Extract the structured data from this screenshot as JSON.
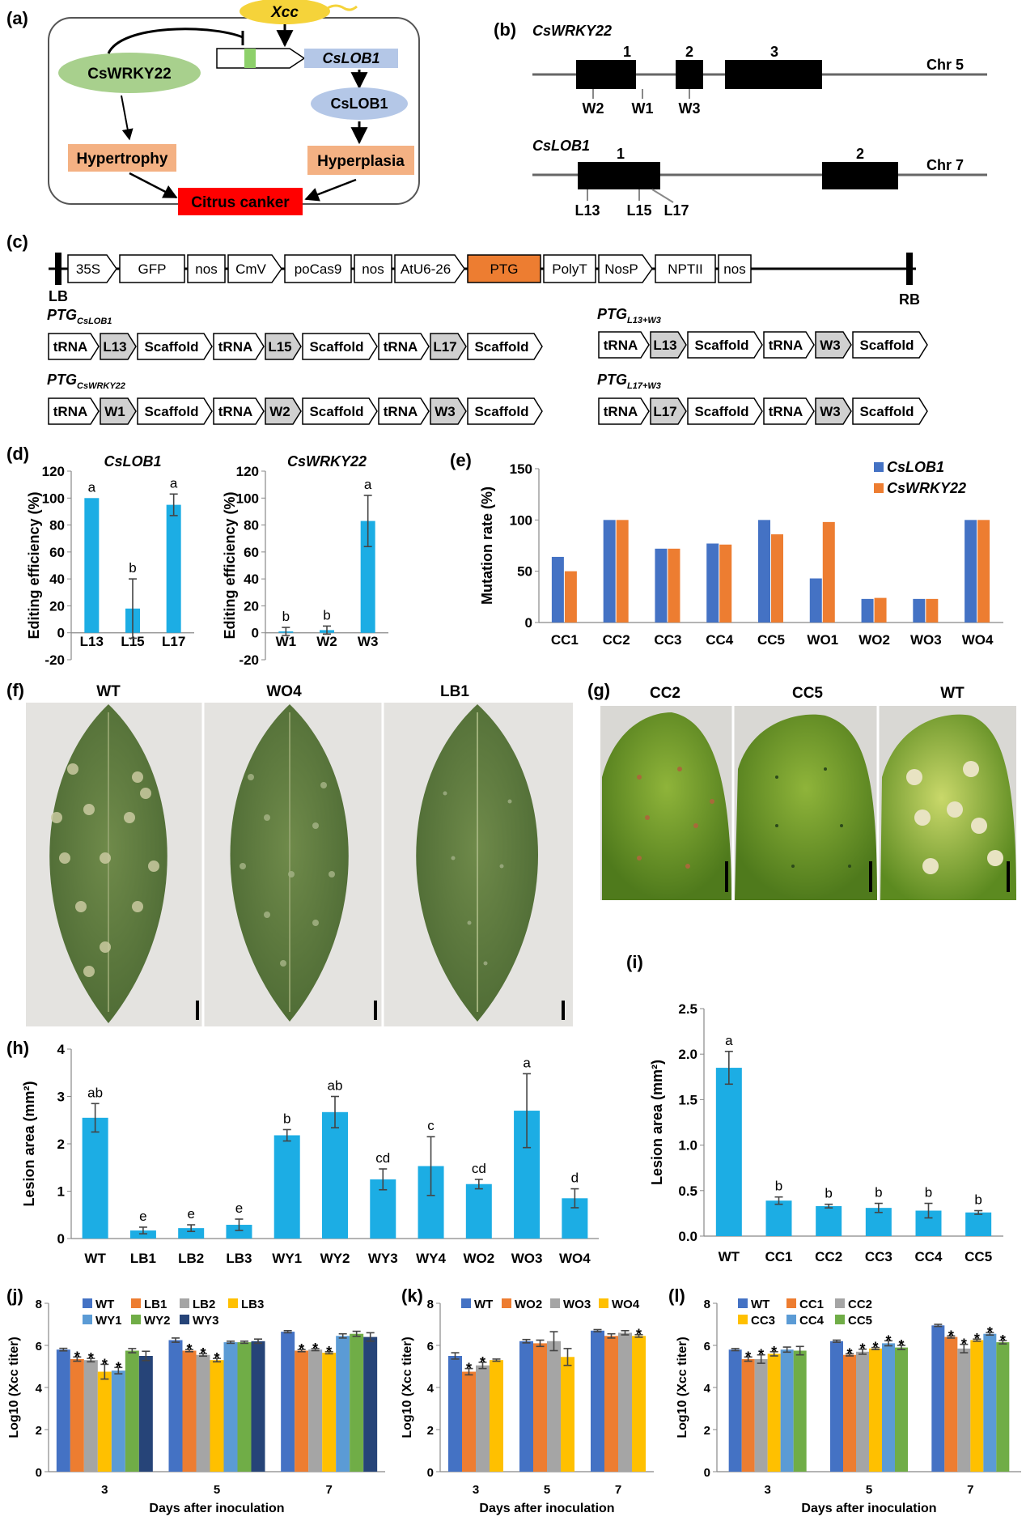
{
  "panels": {
    "a": {
      "label": "(a)",
      "xcc": "Xcc",
      "wrky": "CsWRKY22",
      "lob_gene": "CsLOB1",
      "lob_protein": "CsLOB1",
      "hypertrophy": "Hypertrophy",
      "hyperplasia": "Hyperplasia",
      "canker": "Citrus canker",
      "colors": {
        "xcc": "#f5d33a",
        "wrky": "#a8d08d",
        "lob_gene": "#b4c7e7",
        "lob_protein": "#b4c7e7",
        "box": "#f4b183",
        "canker": "#ff0000"
      }
    },
    "b": {
      "label": "(b)",
      "gene1": {
        "name": "CsWRKY22",
        "chr": "Chr 5",
        "exons": [
          "1",
          "2",
          "3"
        ],
        "sites": [
          "W2",
          "W1",
          "W3"
        ]
      },
      "gene2": {
        "name": "CsLOB1",
        "chr": "Chr 7",
        "exons": [
          "1",
          "2"
        ],
        "sites": [
          "L13",
          "L15",
          "L17"
        ]
      }
    },
    "c": {
      "label": "(c)",
      "vector": [
        "35S",
        "GFP",
        "nos",
        "CmV",
        "poCas9",
        "nos",
        "AtU6-26",
        "PTG",
        "PolyT",
        "NosP",
        "NPTII",
        "nos"
      ],
      "lb": "LB",
      "rb": "RB",
      "ptg_color": "#ed7d31",
      "ptg_sets": [
        {
          "name": "PTG",
          "sub": "CsLOB1",
          "units": [
            "tRNA",
            "L13",
            "Scaffold",
            "tRNA",
            "L15",
            "Scaffold",
            "tRNA",
            "L17",
            "Scaffold"
          ]
        },
        {
          "name": "PTG",
          "sub": "CsWRKY22",
          "units": [
            "tRNA",
            "W1",
            "Scaffold",
            "tRNA",
            "W2",
            "Scaffold",
            "tRNA",
            "W3",
            "Scaffold"
          ]
        },
        {
          "name": "PTG",
          "sub": "L13+W3",
          "units": [
            "tRNA",
            "L13",
            "Scaffold",
            "tRNA",
            "W3",
            "Scaffold"
          ]
        },
        {
          "name": "PTG",
          "sub": "L17+W3",
          "units": [
            "tRNA",
            "L17",
            "Scaffold",
            "tRNA",
            "W3",
            "Scaffold"
          ]
        }
      ]
    },
    "d": {
      "label": "(d)"
    },
    "e": {
      "label": "(e)"
    },
    "f": {
      "label": "(f)",
      "titles": [
        "WT",
        "WO4",
        "LB1"
      ]
    },
    "g": {
      "label": "(g)",
      "titles": [
        "CC2",
        "CC5",
        "WT"
      ]
    },
    "h": {
      "label": "(h)"
    },
    "i": {
      "label": "(i)"
    },
    "j": {
      "label": "(j)"
    },
    "k": {
      "label": "(k)"
    },
    "l": {
      "label": "(l)"
    }
  },
  "chart_data": [
    {
      "id": "d1",
      "type": "bar",
      "title": "CsLOB1",
      "ylabel": "Editing efficiency (%)",
      "ylim": [
        -20,
        120
      ],
      "yticks": [
        -20,
        0,
        20,
        40,
        60,
        80,
        100,
        120
      ],
      "categories": [
        "L13",
        "L15",
        "L17"
      ],
      "values": [
        100,
        18,
        95
      ],
      "errors": [
        0,
        22,
        8
      ],
      "letters": [
        "a",
        "b",
        "a"
      ],
      "color": "#1cade4"
    },
    {
      "id": "d2",
      "type": "bar",
      "title": "CsWRKY22",
      "ylabel": "Editing efficiency (%)",
      "ylim": [
        -20,
        120
      ],
      "yticks": [
        -20,
        0,
        20,
        40,
        60,
        80,
        100,
        120
      ],
      "categories": [
        "W1",
        "W2",
        "W3"
      ],
      "values": [
        1,
        2,
        83
      ],
      "errors": [
        3,
        3,
        19
      ],
      "letters": [
        "b",
        "b",
        "a"
      ],
      "color": "#1cade4"
    },
    {
      "id": "e",
      "type": "bar",
      "ylabel": "Mutation rate (%)",
      "ylim": [
        0,
        150
      ],
      "yticks": [
        0,
        50,
        100,
        150
      ],
      "categories": [
        "CC1",
        "CC2",
        "CC3",
        "CC4",
        "CC5",
        "WO1",
        "WO2",
        "WO3",
        "WO4"
      ],
      "series": [
        {
          "name": "CsLOB1",
          "color": "#4472c4",
          "values": [
            64,
            100,
            72,
            77,
            100,
            43,
            23,
            23,
            100
          ]
        },
        {
          "name": "CsWRKY22",
          "color": "#ed7d31",
          "values": [
            50,
            100,
            72,
            76,
            86,
            98,
            24,
            23,
            100
          ]
        }
      ]
    },
    {
      "id": "h",
      "type": "bar",
      "ylabel": "Lesion area (mm²)",
      "ylim": [
        0,
        4
      ],
      "yticks": [
        0,
        1,
        2,
        3,
        4
      ],
      "categories": [
        "WT",
        "LB1",
        "LB2",
        "LB3",
        "WY1",
        "WY2",
        "WY3",
        "WY4",
        "WO2",
        "WO3",
        "WO4"
      ],
      "values": [
        2.55,
        0.17,
        0.22,
        0.29,
        2.18,
        2.67,
        1.25,
        1.53,
        1.15,
        2.7,
        0.85
      ],
      "errors": [
        0.3,
        0.07,
        0.07,
        0.12,
        0.12,
        0.33,
        0.22,
        0.62,
        0.1,
        0.78,
        0.2
      ],
      "letters": [
        "ab",
        "e",
        "e",
        "e",
        "b",
        "ab",
        "cd",
        "c",
        "cd",
        "a",
        "d"
      ],
      "color": "#1cade4"
    },
    {
      "id": "i",
      "type": "bar",
      "ylabel": "Lesion area (mm²)",
      "ylim": [
        0,
        2.5
      ],
      "yticks": [
        0.0,
        0.5,
        1.0,
        1.5,
        2.0,
        2.5
      ],
      "categories": [
        "WT",
        "CC1",
        "CC2",
        "CC3",
        "CC4",
        "CC5"
      ],
      "values": [
        1.85,
        0.39,
        0.33,
        0.31,
        0.28,
        0.26
      ],
      "errors": [
        0.18,
        0.04,
        0.02,
        0.05,
        0.08,
        0.02
      ],
      "letters": [
        "a",
        "b",
        "b",
        "b",
        "b",
        "b"
      ],
      "color": "#1cade4"
    },
    {
      "id": "j",
      "type": "bar",
      "ylabel": "Log10 (Xcc titer)",
      "xlabel": "Days after inoculation",
      "ylim": [
        0,
        8
      ],
      "yticks": [
        0,
        2,
        4,
        6,
        8
      ],
      "categories": [
        "3",
        "5",
        "7"
      ],
      "series": [
        {
          "name": "WT",
          "color": "#4472c4",
          "values": [
            5.8,
            6.25,
            6.65
          ],
          "errors": [
            0.06,
            0.1,
            0.05
          ],
          "star": [
            false,
            false,
            false
          ]
        },
        {
          "name": "LB1",
          "color": "#ed7d31",
          "values": [
            5.35,
            5.75,
            5.75
          ],
          "errors": [
            0.1,
            0.05,
            0.05
          ],
          "star": [
            true,
            true,
            true
          ]
        },
        {
          "name": "LB2",
          "color": "#a5a5a5",
          "values": [
            5.3,
            5.55,
            5.8
          ],
          "errors": [
            0.08,
            0.06,
            0.05
          ],
          "star": [
            true,
            true,
            true
          ]
        },
        {
          "name": "LB3",
          "color": "#ffc000",
          "values": [
            4.75,
            5.3,
            5.65
          ],
          "errors": [
            0.35,
            0.08,
            0.05
          ],
          "star": [
            true,
            true,
            true
          ]
        },
        {
          "name": "WY1",
          "color": "#5b9bd5",
          "values": [
            4.8,
            6.15,
            6.45
          ],
          "errors": [
            0.15,
            0.05,
            0.1
          ],
          "star": [
            true,
            false,
            false
          ]
        },
        {
          "name": "WY2",
          "color": "#70ad47",
          "values": [
            5.75,
            6.15,
            6.55
          ],
          "errors": [
            0.1,
            0.05,
            0.12
          ],
          "star": [
            false,
            false,
            false
          ]
        },
        {
          "name": "WY3",
          "color": "#264478",
          "values": [
            5.5,
            6.2,
            6.4
          ],
          "errors": [
            0.22,
            0.1,
            0.2
          ],
          "star": [
            false,
            false,
            false
          ]
        }
      ]
    },
    {
      "id": "k",
      "type": "bar",
      "ylabel": "Log10 (Xcc titer)",
      "xlabel": "Days after inoculation",
      "ylim": [
        0,
        8
      ],
      "yticks": [
        0,
        2,
        4,
        6,
        8
      ],
      "categories": [
        "3",
        "5",
        "7"
      ],
      "series": [
        {
          "name": "WT",
          "color": "#4472c4",
          "values": [
            5.5,
            6.2,
            6.7
          ],
          "errors": [
            0.15,
            0.08,
            0.05
          ],
          "star": [
            false,
            false,
            false
          ]
        },
        {
          "name": "WO2",
          "color": "#ed7d31",
          "values": [
            4.75,
            6.1,
            6.45
          ],
          "errors": [
            0.15,
            0.15,
            0.1
          ],
          "star": [
            true,
            false,
            false
          ]
        },
        {
          "name": "WO3",
          "color": "#a5a5a5",
          "values": [
            5.05,
            6.2,
            6.6
          ],
          "errors": [
            0.15,
            0.45,
            0.1
          ],
          "star": [
            true,
            false,
            false
          ]
        },
        {
          "name": "WO4",
          "color": "#ffc000",
          "values": [
            5.3,
            5.45,
            6.45
          ],
          "errors": [
            0.05,
            0.4,
            0.06
          ],
          "star": [
            false,
            false,
            true
          ]
        }
      ]
    },
    {
      "id": "l",
      "type": "bar",
      "ylabel": "Log10 (Xcc titer)",
      "xlabel": "Days after inoculation",
      "ylim": [
        0,
        8
      ],
      "yticks": [
        0,
        2,
        4,
        6,
        8
      ],
      "categories": [
        "3",
        "5",
        "7"
      ],
      "series": [
        {
          "name": "WT",
          "color": "#4472c4",
          "values": [
            5.8,
            6.2,
            6.95
          ],
          "errors": [
            0.05,
            0.05,
            0.05
          ],
          "star": [
            false,
            false,
            false
          ]
        },
        {
          "name": "CC1",
          "color": "#ed7d31",
          "values": [
            5.35,
            5.55,
            6.4
          ],
          "errors": [
            0.1,
            0.05,
            0.05
          ],
          "star": [
            true,
            true,
            true
          ]
        },
        {
          "name": "CC2",
          "color": "#a5a5a5",
          "values": [
            5.35,
            5.7,
            5.85
          ],
          "errors": [
            0.2,
            0.12,
            0.2
          ],
          "star": [
            true,
            true,
            true
          ]
        },
        {
          "name": "CC3",
          "color": "#ffc000",
          "values": [
            5.6,
            5.85,
            6.25
          ],
          "errors": [
            0.1,
            0.05,
            0.05
          ],
          "star": [
            true,
            true,
            true
          ]
        },
        {
          "name": "CC4",
          "color": "#5b9bd5",
          "values": [
            5.8,
            6.1,
            6.55
          ],
          "errors": [
            0.12,
            0.12,
            0.06
          ],
          "star": [
            false,
            true,
            true
          ]
        },
        {
          "name": "CC5",
          "color": "#70ad47",
          "values": [
            5.75,
            5.9,
            6.15
          ],
          "errors": [
            0.2,
            0.1,
            0.08
          ],
          "star": [
            false,
            true,
            true
          ]
        }
      ]
    }
  ]
}
